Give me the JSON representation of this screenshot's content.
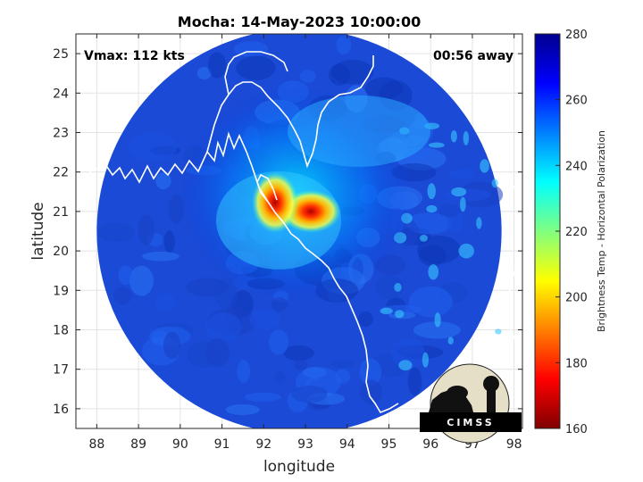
{
  "chart_data": {
    "type": "heatmap",
    "title": "Mocha: 14-May-2023 10:00:00",
    "xlabel": "longitude",
    "ylabel": "latitude",
    "xlim": [
      87.5,
      98.2
    ],
    "ylim": [
      15.5,
      25.5
    ],
    "xticks": [
      88,
      89,
      90,
      91,
      92,
      93,
      94,
      95,
      96,
      97,
      98
    ],
    "yticks": [
      16,
      17,
      18,
      19,
      20,
      21,
      22,
      23,
      24,
      25
    ],
    "grid": true,
    "annotations": {
      "left": "Vmax: 112 kts",
      "right": "00:56 away"
    },
    "swath": {
      "center_lon": 92.85,
      "center_lat": 20.5,
      "radius_deg": 4.85
    },
    "storm_center": {
      "lon": 93.0,
      "lat": 21.0
    },
    "colorbar": {
      "label": "Brightness Temp - Horizontal Polarization",
      "min": 160,
      "max": 280,
      "ticks": [
        160,
        180,
        200,
        220,
        240,
        260,
        280
      ],
      "colormap": "jet"
    }
  },
  "logo": {
    "text": "CIMSS"
  }
}
